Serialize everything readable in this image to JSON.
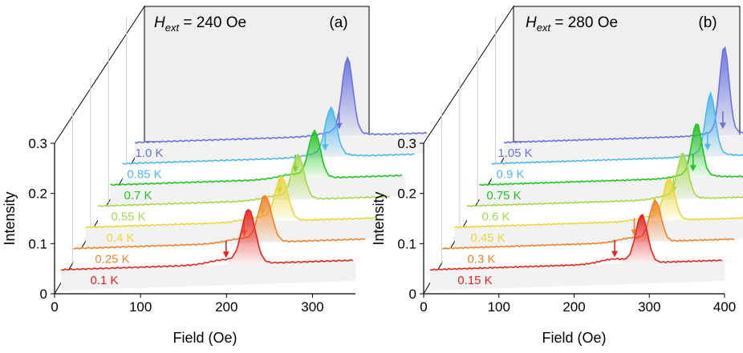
{
  "figure": {
    "description_panels": 2
  },
  "chart_data": [
    {
      "type": "line",
      "panel_label": "(a)",
      "title_symbol": "H",
      "title_subscript": "ext",
      "title_value": "= 240 Oe",
      "xlabel": "Field (Oe)",
      "ylabel": "Intensity",
      "xlim": [
        0,
        350
      ],
      "ylim": [
        0,
        0.3
      ],
      "xticks": [
        "0",
        "100",
        "200",
        "300"
      ],
      "yticks": [
        "0",
        "0.1",
        "0.2",
        "0.3"
      ],
      "series": [
        {
          "name": "0.1 K",
          "temperature_K": 0.1,
          "color": "#e8231e",
          "baseline": 0.05,
          "peak_field": 225,
          "peak_height": 0.1,
          "arrow_field": 198
        },
        {
          "name": "0.25 K",
          "temperature_K": 0.25,
          "color": "#f0822a",
          "baseline": 0.05,
          "peak_field": 230,
          "peak_height": 0.085,
          "arrow_field": 205
        },
        {
          "name": "0.4 K",
          "temperature_K": 0.4,
          "color": "#e8d83a",
          "baseline": 0.05,
          "peak_field": 235,
          "peak_height": 0.08,
          "arrow_field": 212
        },
        {
          "name": "0.55 K",
          "temperature_K": 0.55,
          "color": "#a6d84a",
          "baseline": 0.05,
          "peak_field": 240,
          "peak_height": 0.08,
          "arrow_field": 218
        },
        {
          "name": "0.7 K",
          "temperature_K": 0.7,
          "color": "#22c422",
          "baseline": 0.05,
          "peak_field": 245,
          "peak_height": 0.085,
          "arrow_field": 222
        },
        {
          "name": "0.85 K",
          "temperature_K": 0.85,
          "color": "#4db8f0",
          "baseline": 0.05,
          "peak_field": 250,
          "peak_height": 0.085,
          "arrow_field": 243
        },
        {
          "name": "1.0 K",
          "temperature_K": 1.0,
          "color": "#6a72e0",
          "baseline": 0.05,
          "peak_field": 255,
          "peak_height": 0.14,
          "arrow_field": 245
        }
      ]
    },
    {
      "type": "line",
      "panel_label": "(b)",
      "title_symbol": "H",
      "title_subscript": "ext",
      "title_value": "= 280 Oe",
      "xlabel": "Field (Oe)",
      "ylabel": "Intensity",
      "xlim": [
        0,
        400
      ],
      "ylim": [
        0,
        0.3
      ],
      "xticks": [
        "0",
        "100",
        "200",
        "300",
        "400"
      ],
      "yticks": [
        "0",
        "0.1",
        "0.2",
        "0.3"
      ],
      "series": [
        {
          "name": "0.15 K",
          "temperature_K": 0.15,
          "color": "#e8231e",
          "baseline": 0.05,
          "peak_field": 290,
          "peak_height": 0.09,
          "arrow_field": 253
        },
        {
          "name": "0.3 K",
          "temperature_K": 0.3,
          "color": "#f0822a",
          "baseline": 0.05,
          "peak_field": 292,
          "peak_height": 0.075,
          "arrow_field": 263
        },
        {
          "name": "0.45 K",
          "temperature_K": 0.45,
          "color": "#e8d83a",
          "baseline": 0.05,
          "peak_field": 294,
          "peak_height": 0.075,
          "arrow_field": 273
        },
        {
          "name": "0.6 K",
          "temperature_K": 0.6,
          "color": "#a6d84a",
          "baseline": 0.05,
          "peak_field": 296,
          "peak_height": 0.08,
          "arrow_field": 283
        },
        {
          "name": "0.75 K",
          "temperature_K": 0.75,
          "color": "#22c422",
          "baseline": 0.05,
          "peak_field": 298,
          "peak_height": 0.095,
          "arrow_field": 293
        },
        {
          "name": "0.9 K",
          "temperature_K": 0.9,
          "color": "#4db8f0",
          "baseline": 0.05,
          "peak_field": 300,
          "peak_height": 0.11,
          "arrow_field": 296
        },
        {
          "name": "1.05 K",
          "temperature_K": 1.05,
          "color": "#6a72e0",
          "baseline": 0.05,
          "peak_field": 302,
          "peak_height": 0.16,
          "arrow_field": 300
        }
      ]
    }
  ]
}
